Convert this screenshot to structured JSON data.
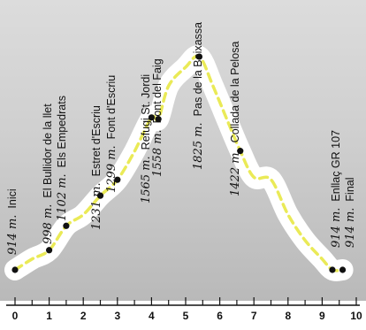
{
  "chart_data": {
    "type": "line",
    "title": "",
    "xlabel": "",
    "ylabel": "",
    "xlim": [
      0,
      10
    ],
    "ylim": [
      850,
      1900
    ],
    "x_ticks": [
      0,
      1,
      2,
      3,
      4,
      5,
      6,
      7,
      8,
      9,
      10
    ],
    "grid": false,
    "colors": {
      "band": "#ffffff",
      "route_line": "#eaea57",
      "waypoint": "#111111",
      "text": "#111111"
    },
    "profile": [
      {
        "x": 0.0,
        "y": 914
      },
      {
        "x": 0.5,
        "y": 960
      },
      {
        "x": 1.0,
        "y": 998
      },
      {
        "x": 1.5,
        "y": 1102
      },
      {
        "x": 2.0,
        "y": 1150
      },
      {
        "x": 2.5,
        "y": 1231
      },
      {
        "x": 3.0,
        "y": 1299
      },
      {
        "x": 3.5,
        "y": 1420
      },
      {
        "x": 4.0,
        "y": 1565
      },
      {
        "x": 4.2,
        "y": 1558
      },
      {
        "x": 4.5,
        "y": 1700
      },
      {
        "x": 5.0,
        "y": 1780
      },
      {
        "x": 5.4,
        "y": 1825
      },
      {
        "x": 5.8,
        "y": 1700
      },
      {
        "x": 6.2,
        "y": 1560
      },
      {
        "x": 6.6,
        "y": 1422
      },
      {
        "x": 7.0,
        "y": 1310
      },
      {
        "x": 7.5,
        "y": 1300
      },
      {
        "x": 8.0,
        "y": 1150
      },
      {
        "x": 8.5,
        "y": 1040
      },
      {
        "x": 9.0,
        "y": 960
      },
      {
        "x": 9.3,
        "y": 914
      },
      {
        "x": 9.6,
        "y": 914
      }
    ],
    "waypoints": [
      {
        "km": 0.0,
        "alt": 914,
        "alt_label": "914 m.",
        "name": "Inici"
      },
      {
        "km": 1.0,
        "alt": 998,
        "alt_label": "998 m.",
        "name": "El Bullidor de la llet"
      },
      {
        "km": 1.5,
        "alt": 1102,
        "alt_label": "1102 m.",
        "name": "Els Empedrats"
      },
      {
        "km": 2.5,
        "alt": 1231,
        "alt_label": "1231 m.",
        "name": "Estret d'Escriu"
      },
      {
        "km": 3.0,
        "alt": 1299,
        "alt_label": "1299 m.",
        "name": "Font d'Escriu"
      },
      {
        "km": 4.0,
        "alt": 1565,
        "alt_label": "1565 m.",
        "name": "Refugi St. Jordi"
      },
      {
        "km": 4.2,
        "alt": 1558,
        "alt_label": "1558 m.",
        "name": "Font del Faig"
      },
      {
        "km": 5.4,
        "alt": 1825,
        "alt_label": "1825 m.",
        "name": "Pas de la Boixassa"
      },
      {
        "km": 6.6,
        "alt": 1422,
        "alt_label": "1422 m.",
        "name": "Collada de la Pelosa"
      },
      {
        "km": 9.3,
        "alt": 914,
        "alt_label": "914 m.",
        "name": "Enllaç GR 107"
      },
      {
        "km": 9.6,
        "alt": 914,
        "alt_label": "914 m.",
        "name": "Final"
      }
    ]
  }
}
